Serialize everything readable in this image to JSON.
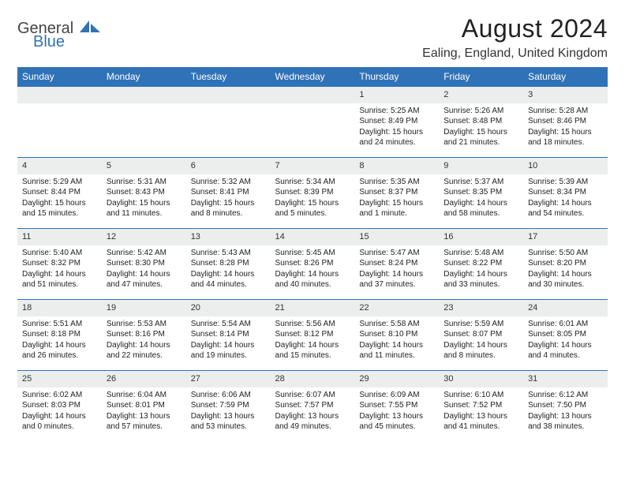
{
  "logo": {
    "line1": "General",
    "line2": "Blue"
  },
  "title": "August 2024",
  "location": "Ealing, England, United Kingdom",
  "colors": {
    "header_bg": "#2f72b8",
    "header_text": "#ffffff",
    "daynum_bg": "#eceded",
    "border_top": "#2f72b8",
    "body_bg": "#ffffff"
  },
  "weekdays": [
    "Sunday",
    "Monday",
    "Tuesday",
    "Wednesday",
    "Thursday",
    "Friday",
    "Saturday"
  ],
  "weeks": [
    [
      null,
      null,
      null,
      null,
      {
        "n": "1",
        "sr": "5:25 AM",
        "ss": "8:49 PM",
        "dl": "15 hours and 24 minutes."
      },
      {
        "n": "2",
        "sr": "5:26 AM",
        "ss": "8:48 PM",
        "dl": "15 hours and 21 minutes."
      },
      {
        "n": "3",
        "sr": "5:28 AM",
        "ss": "8:46 PM",
        "dl": "15 hours and 18 minutes."
      }
    ],
    [
      {
        "n": "4",
        "sr": "5:29 AM",
        "ss": "8:44 PM",
        "dl": "15 hours and 15 minutes."
      },
      {
        "n": "5",
        "sr": "5:31 AM",
        "ss": "8:43 PM",
        "dl": "15 hours and 11 minutes."
      },
      {
        "n": "6",
        "sr": "5:32 AM",
        "ss": "8:41 PM",
        "dl": "15 hours and 8 minutes."
      },
      {
        "n": "7",
        "sr": "5:34 AM",
        "ss": "8:39 PM",
        "dl": "15 hours and 5 minutes."
      },
      {
        "n": "8",
        "sr": "5:35 AM",
        "ss": "8:37 PM",
        "dl": "15 hours and 1 minute."
      },
      {
        "n": "9",
        "sr": "5:37 AM",
        "ss": "8:35 PM",
        "dl": "14 hours and 58 minutes."
      },
      {
        "n": "10",
        "sr": "5:39 AM",
        "ss": "8:34 PM",
        "dl": "14 hours and 54 minutes."
      }
    ],
    [
      {
        "n": "11",
        "sr": "5:40 AM",
        "ss": "8:32 PM",
        "dl": "14 hours and 51 minutes."
      },
      {
        "n": "12",
        "sr": "5:42 AM",
        "ss": "8:30 PM",
        "dl": "14 hours and 47 minutes."
      },
      {
        "n": "13",
        "sr": "5:43 AM",
        "ss": "8:28 PM",
        "dl": "14 hours and 44 minutes."
      },
      {
        "n": "14",
        "sr": "5:45 AM",
        "ss": "8:26 PM",
        "dl": "14 hours and 40 minutes."
      },
      {
        "n": "15",
        "sr": "5:47 AM",
        "ss": "8:24 PM",
        "dl": "14 hours and 37 minutes."
      },
      {
        "n": "16",
        "sr": "5:48 AM",
        "ss": "8:22 PM",
        "dl": "14 hours and 33 minutes."
      },
      {
        "n": "17",
        "sr": "5:50 AM",
        "ss": "8:20 PM",
        "dl": "14 hours and 30 minutes."
      }
    ],
    [
      {
        "n": "18",
        "sr": "5:51 AM",
        "ss": "8:18 PM",
        "dl": "14 hours and 26 minutes."
      },
      {
        "n": "19",
        "sr": "5:53 AM",
        "ss": "8:16 PM",
        "dl": "14 hours and 22 minutes."
      },
      {
        "n": "20",
        "sr": "5:54 AM",
        "ss": "8:14 PM",
        "dl": "14 hours and 19 minutes."
      },
      {
        "n": "21",
        "sr": "5:56 AM",
        "ss": "8:12 PM",
        "dl": "14 hours and 15 minutes."
      },
      {
        "n": "22",
        "sr": "5:58 AM",
        "ss": "8:10 PM",
        "dl": "14 hours and 11 minutes."
      },
      {
        "n": "23",
        "sr": "5:59 AM",
        "ss": "8:07 PM",
        "dl": "14 hours and 8 minutes."
      },
      {
        "n": "24",
        "sr": "6:01 AM",
        "ss": "8:05 PM",
        "dl": "14 hours and 4 minutes."
      }
    ],
    [
      {
        "n": "25",
        "sr": "6:02 AM",
        "ss": "8:03 PM",
        "dl": "14 hours and 0 minutes."
      },
      {
        "n": "26",
        "sr": "6:04 AM",
        "ss": "8:01 PM",
        "dl": "13 hours and 57 minutes."
      },
      {
        "n": "27",
        "sr": "6:06 AM",
        "ss": "7:59 PM",
        "dl": "13 hours and 53 minutes."
      },
      {
        "n": "28",
        "sr": "6:07 AM",
        "ss": "7:57 PM",
        "dl": "13 hours and 49 minutes."
      },
      {
        "n": "29",
        "sr": "6:09 AM",
        "ss": "7:55 PM",
        "dl": "13 hours and 45 minutes."
      },
      {
        "n": "30",
        "sr": "6:10 AM",
        "ss": "7:52 PM",
        "dl": "13 hours and 41 minutes."
      },
      {
        "n": "31",
        "sr": "6:12 AM",
        "ss": "7:50 PM",
        "dl": "13 hours and 38 minutes."
      }
    ]
  ],
  "labels": {
    "sunrise": "Sunrise:",
    "sunset": "Sunset:",
    "daylight": "Daylight:"
  }
}
